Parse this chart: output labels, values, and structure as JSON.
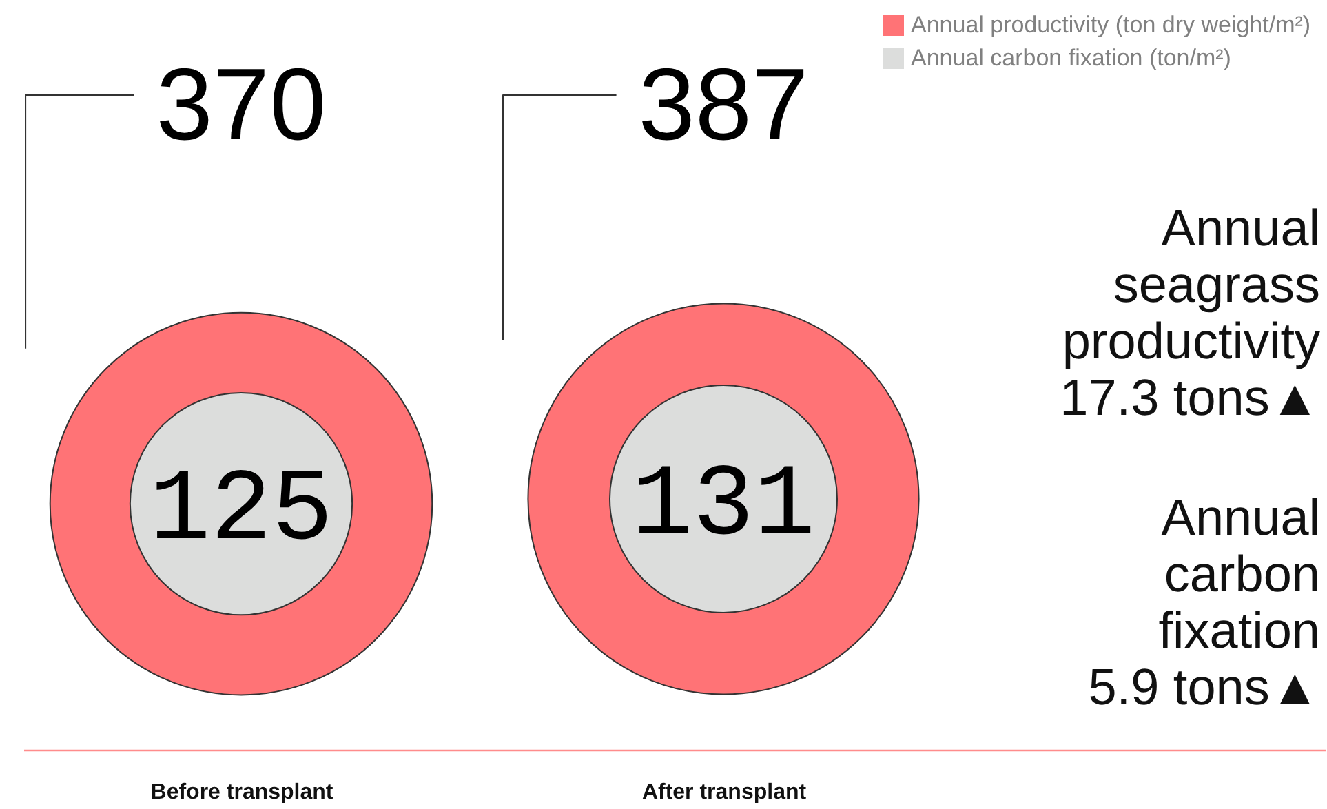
{
  "chart_data": {
    "type": "other",
    "categories": [
      "Before transplant",
      "After transplant"
    ],
    "series": [
      {
        "name": "Annual productivity (ton dry weight/m²)",
        "color": "#ff7376",
        "values": [
          370,
          387
        ]
      },
      {
        "name": "Annual carbon fixation (ton/m²)",
        "color": "#dcdddc",
        "values": [
          125,
          131
        ]
      }
    ],
    "data_labels": true,
    "legend": "top right",
    "annotations": [
      "Annual seagrass productivity 17.3 tons▲",
      "Annual carbon fixation 5.9 tons▲"
    ]
  }
}
